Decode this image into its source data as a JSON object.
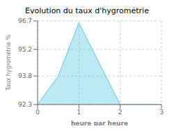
{
  "chart_data": {
    "type": "area",
    "title": "Evolution du taux d'hygrométrie",
    "xlabel": "heure par heure",
    "ylabel": "Taux hygrométrie %",
    "x": [
      0,
      0.5,
      1,
      2,
      2,
      3
    ],
    "values": [
      92.3,
      93.8,
      96.6,
      92.3,
      92.3,
      92.3
    ],
    "color": "#5bc8e0",
    "xlim": [
      0,
      3
    ],
    "ylim": [
      92.3,
      96.7
    ],
    "xticks": [
      0,
      1,
      2,
      3
    ],
    "yticks": [
      92.3,
      93.8,
      95.2,
      96.7
    ],
    "grid": true
  }
}
